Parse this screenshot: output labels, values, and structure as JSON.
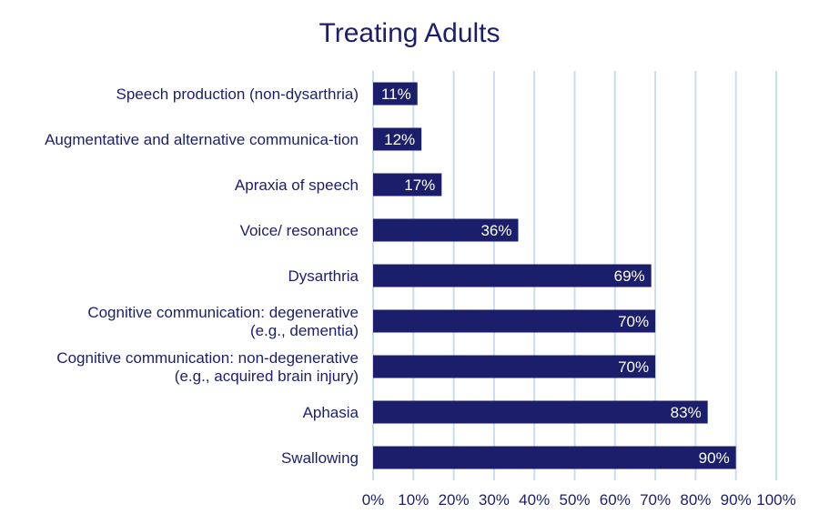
{
  "chart_data": {
    "type": "bar",
    "orientation": "horizontal",
    "title": "Treating Adults",
    "categories": [
      [
        "Speech production (non-dysarthria)"
      ],
      [
        "Augmentative and alternative communica-tion"
      ],
      [
        "Apraxia of speech"
      ],
      [
        "Voice/ resonance"
      ],
      [
        "Dysarthria"
      ],
      [
        "Cognitive communication: degenerative",
        "(e.g., dementia)"
      ],
      [
        "Cognitive communication: non-degenerative",
        "(e.g., acquired brain injury)"
      ],
      [
        "Aphasia"
      ],
      [
        "Swallowing"
      ]
    ],
    "values": [
      11,
      12,
      17,
      36,
      69,
      70,
      70,
      83,
      90
    ],
    "data_labels": [
      "11%",
      "12%",
      "17%",
      "36%",
      "69%",
      "70%",
      "70%",
      "83%",
      "90%"
    ],
    "xlim": [
      0,
      100
    ],
    "xticks": [
      "0%",
      "10%",
      "20%",
      "30%",
      "40%",
      "50%",
      "60%",
      "70%",
      "80%",
      "90%",
      "100%"
    ],
    "xlabel": "",
    "ylabel": "",
    "grid": "vertical",
    "legend": "none",
    "colors": {
      "bar": "#1b1f6b",
      "text": "#1b1f6b",
      "grid": "#c9ddf1",
      "data_label": "#ffffff"
    }
  }
}
